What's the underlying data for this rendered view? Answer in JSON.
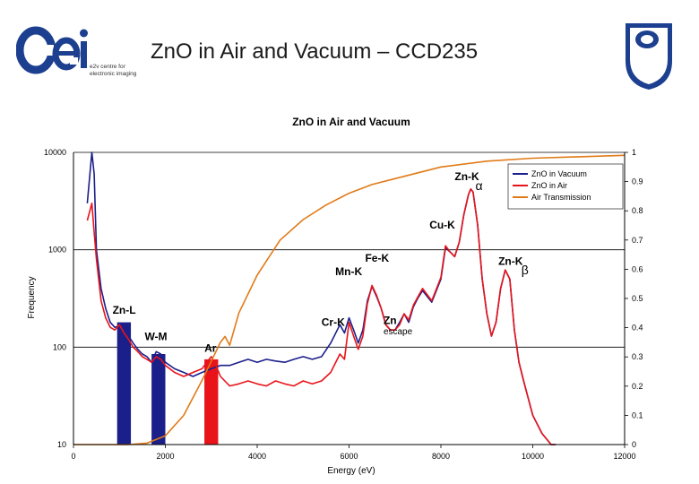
{
  "slide": {
    "title": "ZnO in Air and Vacuum – CCD235",
    "logo_left_caption_line1": "e2v centre for",
    "logo_left_caption_line2": "electronic imaging"
  },
  "colors": {
    "vacuum": "#1b1f8a",
    "air": "#e8141a",
    "transmission": "#e07b18",
    "grid": "#000000",
    "logo_blue": "#1d3f8f"
  },
  "chart_data": {
    "type": "line",
    "title": "ZnO in Air and Vacuum",
    "xlabel": "Energy (eV)",
    "ylabel": "Frequency",
    "xlim": [
      0,
      12000
    ],
    "ylim_log": [
      10,
      10000
    ],
    "y2lim": [
      0,
      1
    ],
    "x_ticks": [
      "0",
      "2000",
      "4000",
      "6000",
      "8000",
      "10000",
      "12000"
    ],
    "y_ticks": [
      "10",
      "100",
      "1000",
      "10000"
    ],
    "y2_ticks": [
      "0",
      "0.1",
      "0.2",
      "0.3",
      "0.4",
      "0.5",
      "0.6",
      "0.7",
      "0.8",
      "0.9",
      "1"
    ],
    "legend": [
      "ZnO in Vacuum",
      "ZnO in Air",
      "Air Transmission"
    ],
    "series": [
      {
        "name": "ZnO in Vacuum",
        "axis": "left",
        "x": [
          300,
          400,
          450,
          500,
          600,
          700,
          800,
          900,
          1000,
          1100,
          1200,
          1300,
          1400,
          1500,
          1600,
          1700,
          1800,
          1900,
          2000,
          2200,
          2400,
          2600,
          2800,
          3000,
          3200,
          3400,
          3600,
          3800,
          4000,
          4200,
          4400,
          4600,
          4800,
          5000,
          5200,
          5400,
          5600,
          5800,
          5900,
          6000,
          6100,
          6200,
          6300,
          6400,
          6500,
          6600,
          6700,
          6800,
          6900,
          7000,
          7100,
          7200,
          7300,
          7400,
          7500,
          7600,
          7800,
          8000,
          8100,
          8200,
          8300,
          8400,
          8500,
          8600,
          8650,
          8700,
          8800,
          8900,
          9000,
          9100,
          9200,
          9300,
          9400,
          9500,
          9600,
          9700,
          9800,
          9900,
          10000,
          10200,
          10400,
          10500
        ],
        "y": [
          3000,
          10000,
          6000,
          1000,
          400,
          250,
          180,
          160,
          165,
          150,
          130,
          110,
          95,
          85,
          80,
          70,
          90,
          85,
          70,
          60,
          55,
          50,
          55,
          60,
          65,
          65,
          70,
          75,
          70,
          75,
          72,
          70,
          75,
          80,
          75,
          80,
          110,
          170,
          140,
          200,
          150,
          110,
          150,
          300,
          420,
          330,
          250,
          170,
          150,
          150,
          180,
          220,
          180,
          260,
          320,
          380,
          290,
          500,
          1050,
          950,
          850,
          1200,
          2300,
          3700,
          4200,
          3900,
          1800,
          500,
          220,
          130,
          180,
          400,
          620,
          500,
          150,
          70,
          45,
          30,
          20,
          13,
          10,
          10
        ]
      },
      {
        "name": "ZnO in Air",
        "axis": "left",
        "x": [
          300,
          400,
          450,
          500,
          600,
          700,
          800,
          900,
          1000,
          1100,
          1200,
          1300,
          1400,
          1500,
          1600,
          1700,
          1800,
          1900,
          2000,
          2200,
          2400,
          2600,
          2800,
          2900,
          3000,
          3100,
          3200,
          3400,
          3600,
          3800,
          4000,
          4200,
          4400,
          4600,
          4800,
          5000,
          5200,
          5400,
          5600,
          5800,
          5900,
          6000,
          6100,
          6200,
          6300,
          6400,
          6500,
          6600,
          6700,
          6800,
          6900,
          7000,
          7100,
          7200,
          7300,
          7400,
          7500,
          7600,
          7800,
          8000,
          8100,
          8200,
          8300,
          8400,
          8500,
          8600,
          8650,
          8700,
          8800,
          8900,
          9000,
          9100,
          9200,
          9300,
          9400,
          9500,
          9600,
          9700,
          9800,
          9900,
          10000,
          10200,
          10400,
          10500
        ],
        "y": [
          2000,
          3000,
          1500,
          800,
          300,
          200,
          160,
          150,
          170,
          140,
          120,
          100,
          90,
          80,
          75,
          70,
          80,
          75,
          65,
          55,
          50,
          55,
          60,
          70,
          80,
          65,
          50,
          40,
          42,
          45,
          42,
          40,
          45,
          42,
          40,
          45,
          42,
          45,
          55,
          85,
          75,
          180,
          130,
          95,
          130,
          280,
          430,
          340,
          250,
          170,
          150,
          150,
          170,
          220,
          190,
          270,
          330,
          400,
          300,
          520,
          1100,
          950,
          850,
          1200,
          2300,
          3700,
          4200,
          3900,
          1800,
          500,
          220,
          130,
          180,
          400,
          620,
          500,
          150,
          70,
          45,
          30,
          20,
          13,
          10,
          10
        ]
      },
      {
        "name": "Air Transmission",
        "axis": "right",
        "x": [
          0,
          1200,
          1600,
          2000,
          2400,
          2800,
          3200,
          3300,
          3400,
          3600,
          4000,
          4500,
          5000,
          5500,
          6000,
          6500,
          7000,
          7500,
          8000,
          9000,
          10000,
          11000,
          12000
        ],
        "y": [
          0,
          0,
          0.005,
          0.03,
          0.1,
          0.22,
          0.35,
          0.37,
          0.34,
          0.45,
          0.58,
          0.7,
          0.77,
          0.82,
          0.86,
          0.89,
          0.91,
          0.93,
          0.95,
          0.97,
          0.98,
          0.985,
          0.99
        ]
      }
    ],
    "highlight_bars": [
      {
        "x_from": 950,
        "x_to": 1250,
        "height": 180,
        "color": "#1b1f8a"
      },
      {
        "x_from": 1700,
        "x_to": 2000,
        "height": 85,
        "color": "#1b1f8a"
      },
      {
        "x_from": 2850,
        "x_to": 3150,
        "height": 75,
        "color": "#e8141a"
      }
    ],
    "annotations": [
      {
        "text": "Zn-L",
        "x": 850,
        "y": 220
      },
      {
        "text": "W-M",
        "x": 1550,
        "y": 118
      },
      {
        "text": "Ar",
        "x": 2850,
        "y": 90
      },
      {
        "text": "Cr-K",
        "x": 5400,
        "y": 165
      },
      {
        "text": "Zn",
        "x": 6750,
        "y": 172
      },
      {
        "text": "escape",
        "x": 6750,
        "y": 135
      },
      {
        "text": "Mn-K",
        "x": 5700,
        "y": 550
      },
      {
        "text": "Fe-K",
        "x": 6350,
        "y": 750
      },
      {
        "text": "Cu-K",
        "x": 7750,
        "y": 1650
      },
      {
        "text": "Zn-K",
        "x": 8300,
        "y": 5200
      },
      {
        "text": "α",
        "x": 8750,
        "y": 4100
      },
      {
        "text": "Zn-K",
        "x": 9250,
        "y": 700
      },
      {
        "text": "β",
        "x": 9750,
        "y": 560
      }
    ]
  }
}
